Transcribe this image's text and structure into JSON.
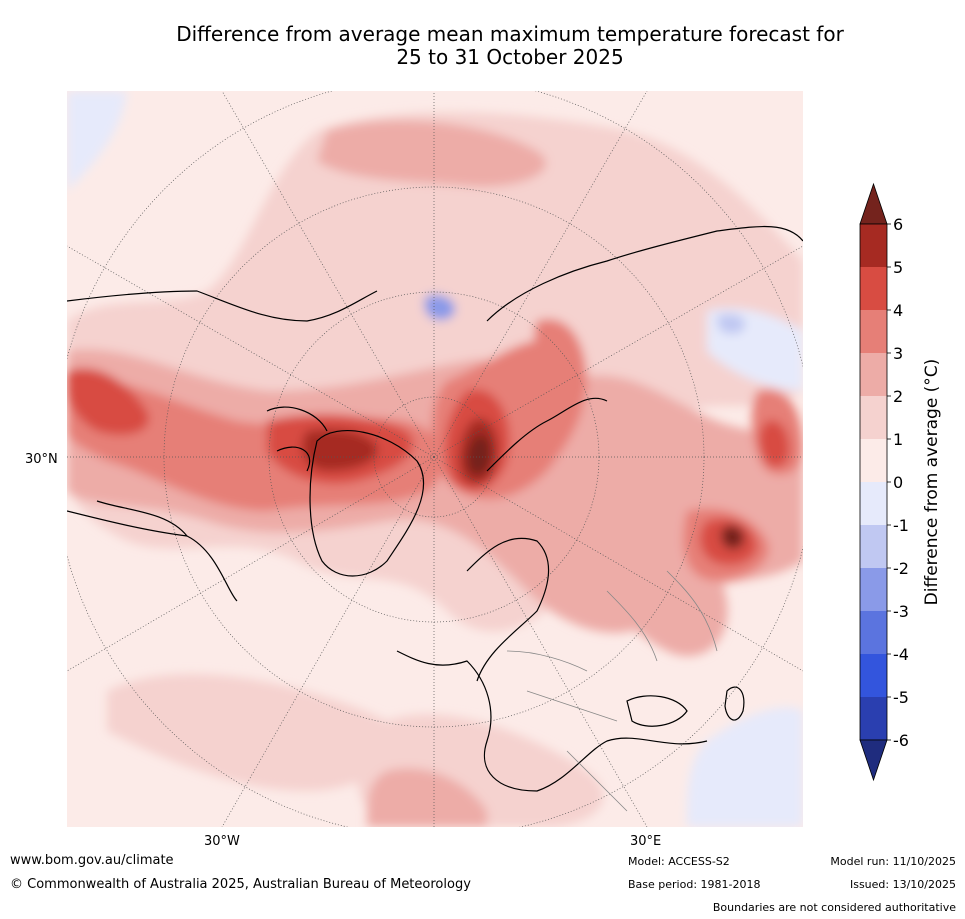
{
  "title": {
    "line1": "Difference from average mean maximum temperature forecast for",
    "line2": "25 to 31 October 2025"
  },
  "map": {
    "lat_label": "30°N",
    "lon_labels": [
      "30°W",
      "30°E"
    ]
  },
  "colorbar": {
    "label": "Difference from average (°C)",
    "ticks": [
      "6",
      "5",
      "4",
      "3",
      "2",
      "1",
      "0",
      "-1",
      "-2",
      "-3",
      "-4",
      "-5",
      "-6"
    ],
    "colors_warm": [
      "#a62a22",
      "#d84c42",
      "#e67f77",
      "#edaca7",
      "#f5d2cf",
      "#fcebe8"
    ],
    "colors_cool": [
      "#e6eafb",
      "#c0c8f2",
      "#8a9ae8",
      "#5b74df",
      "#3355dd",
      "#2a3fb0"
    ],
    "over_color": "#74231d",
    "under_color": "#1f2c7e"
  },
  "footer": {
    "website": "www.bom.gov.au/climate",
    "copyright": "© Commonwealth of Australia 2025, Australian Bureau of Meteorology",
    "model": "Model: ACCESS-S2",
    "base_period": "Base period: 1981-2018",
    "model_run": "Model run: 11/10/2025",
    "issued": "Issued: 13/10/2025",
    "disclaimer": "Boundaries are not considered authoritative"
  }
}
